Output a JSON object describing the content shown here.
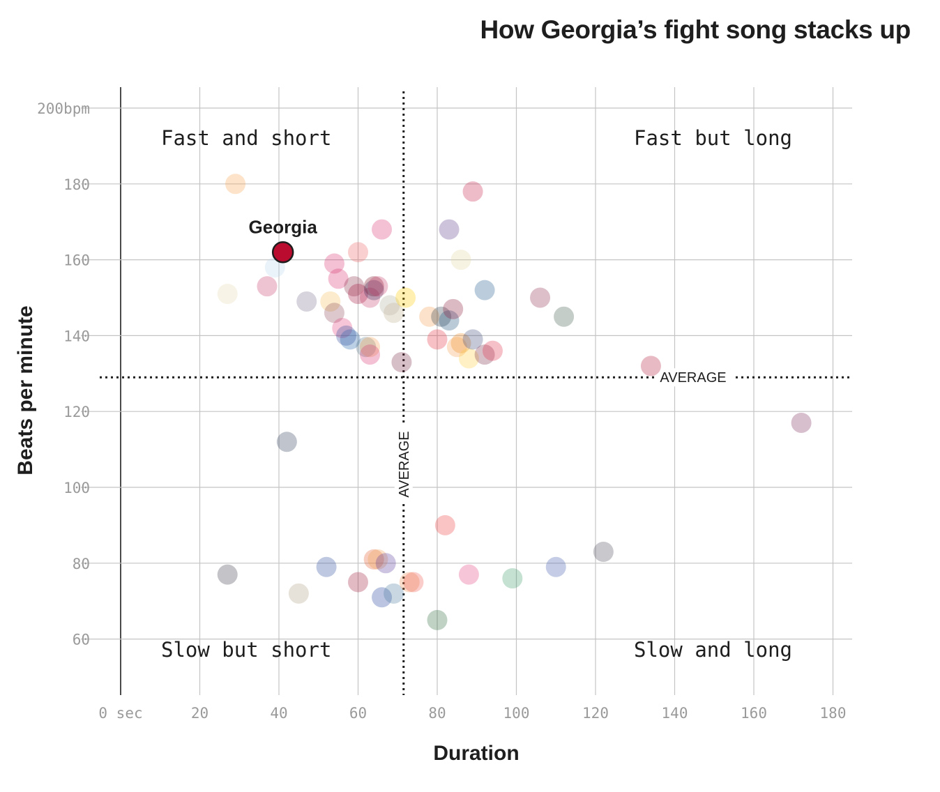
{
  "chart_data": {
    "type": "scatter",
    "title": "How Georgia’s fight song stacks up",
    "xlabel": "Duration",
    "ylabel": "Beats per minute",
    "xlim": [
      0,
      185
    ],
    "ylim": [
      45,
      205
    ],
    "x_ticks": [
      {
        "value": 0,
        "label": "0 sec"
      },
      {
        "value": 20,
        "label": "20"
      },
      {
        "value": 40,
        "label": "40"
      },
      {
        "value": 60,
        "label": "60"
      },
      {
        "value": 80,
        "label": "80"
      },
      {
        "value": 100,
        "label": "100"
      },
      {
        "value": 120,
        "label": "120"
      },
      {
        "value": 140,
        "label": "140"
      },
      {
        "value": 160,
        "label": "160"
      },
      {
        "value": 180,
        "label": "180"
      }
    ],
    "y_ticks": [
      {
        "value": 200,
        "label": "200bpm"
      },
      {
        "value": 180,
        "label": "180"
      },
      {
        "value": 160,
        "label": "160"
      },
      {
        "value": 140,
        "label": "140"
      },
      {
        "value": 120,
        "label": "120"
      },
      {
        "value": 100,
        "label": "100"
      },
      {
        "value": 80,
        "label": "80"
      },
      {
        "value": 60,
        "label": "60"
      }
    ],
    "grid": true,
    "average_x": 71.5,
    "average_y": 129,
    "average_label": "AVERAGE",
    "quadrants": {
      "top_left": "Fast and short",
      "top_right": "Fast but long",
      "bottom_left": "Slow but short",
      "bottom_right": "Slow and long"
    },
    "highlight": {
      "name": "Georgia",
      "x": 41,
      "y": 162,
      "color": "#ba0c2f"
    },
    "points": [
      {
        "x": 29,
        "y": 180,
        "color": "#f9a24b"
      },
      {
        "x": 27,
        "y": 151,
        "color": "#e3dbb0"
      },
      {
        "x": 37,
        "y": 153,
        "color": "#c63b6b"
      },
      {
        "x": 39,
        "y": 158,
        "color": "#bcd6f0"
      },
      {
        "x": 47,
        "y": 149,
        "color": "#7a6f90"
      },
      {
        "x": 53,
        "y": 149,
        "color": "#f5c15a"
      },
      {
        "x": 54,
        "y": 146,
        "color": "#8c4a5a"
      },
      {
        "x": 54,
        "y": 159,
        "color": "#d6336c"
      },
      {
        "x": 55,
        "y": 155,
        "color": "#d6336c"
      },
      {
        "x": 56,
        "y": 142,
        "color": "#e0407a"
      },
      {
        "x": 57,
        "y": 140,
        "color": "#2e4a9a"
      },
      {
        "x": 58,
        "y": 139,
        "color": "#1f5fa8"
      },
      {
        "x": 59,
        "y": 153,
        "color": "#8c2e4a"
      },
      {
        "x": 60,
        "y": 162,
        "color": "#f06060"
      },
      {
        "x": 60,
        "y": 151,
        "color": "#a3123a"
      },
      {
        "x": 62,
        "y": 137,
        "color": "#5a7a8a"
      },
      {
        "x": 63,
        "y": 137,
        "color": "#f5a050"
      },
      {
        "x": 63,
        "y": 135,
        "color": "#d6336c"
      },
      {
        "x": 63,
        "y": 150,
        "color": "#c6406a"
      },
      {
        "x": 64,
        "y": 153,
        "color": "#7a1020"
      },
      {
        "x": 64,
        "y": 152,
        "color": "#3a2a5a"
      },
      {
        "x": 65,
        "y": 153,
        "color": "#c63b6b"
      },
      {
        "x": 66,
        "y": 168,
        "color": "#d6336c"
      },
      {
        "x": 68,
        "y": 148,
        "color": "#b0b0a0"
      },
      {
        "x": 69,
        "y": 146,
        "color": "#c0b090"
      },
      {
        "x": 71,
        "y": 133,
        "color": "#7a2a4a"
      },
      {
        "x": 72,
        "y": 150,
        "color": "#ffcc00"
      },
      {
        "x": 78,
        "y": 145,
        "color": "#f5a050"
      },
      {
        "x": 80,
        "y": 139,
        "color": "#e03040"
      },
      {
        "x": 81,
        "y": 145,
        "color": "#2a3a4a"
      },
      {
        "x": 83,
        "y": 144,
        "color": "#1f4f7a"
      },
      {
        "x": 83,
        "y": 168,
        "color": "#5a3a8a"
      },
      {
        "x": 84,
        "y": 147,
        "color": "#8c1a3a"
      },
      {
        "x": 85,
        "y": 137,
        "color": "#f5a050"
      },
      {
        "x": 86,
        "y": 138,
        "color": "#f08a20"
      },
      {
        "x": 86,
        "y": 160,
        "color": "#e0d8a0"
      },
      {
        "x": 88,
        "y": 134,
        "color": "#ffd040"
      },
      {
        "x": 89,
        "y": 139,
        "color": "#3a4a7a"
      },
      {
        "x": 89,
        "y": 178,
        "color": "#c81e4a"
      },
      {
        "x": 92,
        "y": 152,
        "color": "#1f5a8a"
      },
      {
        "x": 92,
        "y": 135,
        "color": "#7a2a4a"
      },
      {
        "x": 94,
        "y": 136,
        "color": "#e0304a"
      },
      {
        "x": 106,
        "y": 150,
        "color": "#8c2a4a"
      },
      {
        "x": 112,
        "y": 145,
        "color": "#3a5a4a"
      },
      {
        "x": 134,
        "y": 132,
        "color": "#b01a3a"
      },
      {
        "x": 172,
        "y": 117,
        "color": "#7a2a5a"
      },
      {
        "x": 42,
        "y": 112,
        "color": "#2a3a5a"
      },
      {
        "x": 27,
        "y": 77,
        "color": "#3a3a4a"
      },
      {
        "x": 45,
        "y": 72,
        "color": "#b0a080"
      },
      {
        "x": 52,
        "y": 79,
        "color": "#2a4a9a"
      },
      {
        "x": 60,
        "y": 75,
        "color": "#a01a3a"
      },
      {
        "x": 64,
        "y": 81,
        "color": "#e05a2a"
      },
      {
        "x": 65,
        "y": 81,
        "color": "#f0a050"
      },
      {
        "x": 66,
        "y": 71,
        "color": "#1f3f9a"
      },
      {
        "x": 67,
        "y": 80,
        "color": "#5a3a9a"
      },
      {
        "x": 69,
        "y": 72,
        "color": "#4a7a9a"
      },
      {
        "x": 73,
        "y": 75,
        "color": "#f08a50"
      },
      {
        "x": 74,
        "y": 75,
        "color": "#f05a50"
      },
      {
        "x": 80,
        "y": 65,
        "color": "#2a6a3a"
      },
      {
        "x": 82,
        "y": 90,
        "color": "#f03a40"
      },
      {
        "x": 88,
        "y": 77,
        "color": "#e0407a"
      },
      {
        "x": 99,
        "y": 76,
        "color": "#3a9a6a"
      },
      {
        "x": 110,
        "y": 79,
        "color": "#3a5aaa"
      },
      {
        "x": 122,
        "y": 83,
        "color": "#4a4a5a"
      }
    ]
  }
}
